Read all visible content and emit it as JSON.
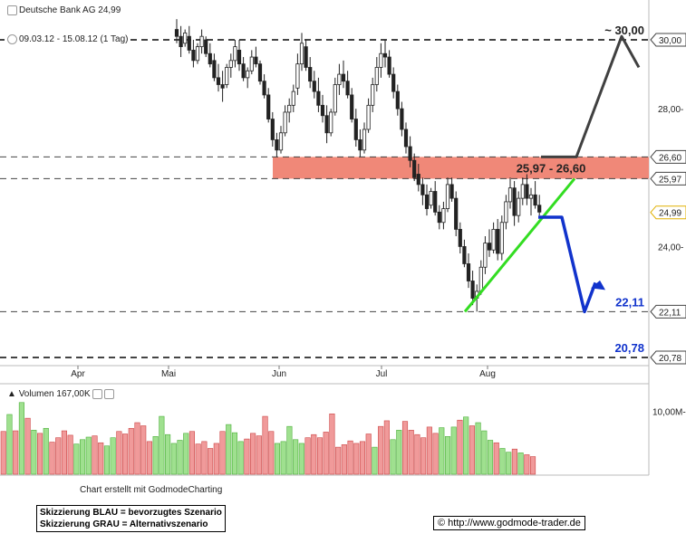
{
  "header": {
    "instrument_label": "Deutsche Bank AG 24,99",
    "period_label": "09.03.12 - 15.08.12 (1 Tag)",
    "volume_label": "Volumen 167,00K"
  },
  "footer": {
    "credit": "Chart erstellt mit GodmodeCharting",
    "legend_blue": "Skizzierung BLAU = bevorzugtes Szenario",
    "legend_grey": "Skizzierung GRAU = Alternativszenario",
    "url": "http://www.godmode-trader.de",
    "copyright_symbol": "©"
  },
  "colors": {
    "up_candle": "#5cbf4a",
    "down_candle": "#d94444",
    "resistance_zone": "#f08878",
    "blue_scenario": "#1133cc",
    "grey_scenario": "#404040",
    "trendline": "#33dd22",
    "volume_up": "#9fe08f",
    "volume_down": "#f09a9a"
  },
  "chart_data": {
    "type": "candlestick",
    "title": "Deutsche Bank AG 24,99",
    "period": "09.03.12 - 15.08.12 (1 Tag)",
    "y_range": [
      20.5,
      30.5
    ],
    "y_ticks": [
      "30,00",
      "28,00",
      "24,00"
    ],
    "x_ticks": [
      "Apr",
      "Mai",
      "Jun",
      "Jul",
      "Aug"
    ],
    "last_price": 24.99,
    "last_price_label": "24,99",
    "levels": [
      {
        "value": 30.0,
        "label": "30,00",
        "annotation": "~ 30,00",
        "style": "dashed"
      },
      {
        "value": 26.6,
        "label": "26,60",
        "style": "dashed"
      },
      {
        "value": 25.97,
        "label": "25,97",
        "style": "dashed"
      },
      {
        "value": 22.11,
        "label": "22,11",
        "annotation": "22,11",
        "style": "dashed"
      },
      {
        "value": 20.78,
        "label": "20,78",
        "annotation": "20,78",
        "style": "dashed"
      }
    ],
    "zone": {
      "from": 25.97,
      "to": 26.6,
      "label": "25,97 - 26,60"
    },
    "trendline": {
      "from_price": 22.11,
      "to_price": 25.97
    },
    "scenario_blue": [
      24.85,
      24.85,
      22.11,
      22.95
    ],
    "scenario_grey": [
      26.6,
      26.6,
      30.1,
      29.2
    ],
    "candles": [
      [
        30.3,
        30.6,
        29.9,
        30.1
      ],
      [
        30.1,
        30.4,
        29.5,
        29.8
      ],
      [
        29.9,
        30.3,
        29.8,
        30.2
      ],
      [
        30.1,
        30.4,
        29.6,
        29.7
      ],
      [
        29.7,
        30.0,
        29.2,
        29.4
      ],
      [
        29.4,
        29.9,
        29.3,
        29.8
      ],
      [
        29.8,
        30.3,
        29.6,
        30.1
      ],
      [
        30.0,
        30.1,
        29.5,
        29.6
      ],
      [
        29.6,
        29.9,
        29.2,
        29.3
      ],
      [
        29.4,
        29.6,
        28.8,
        28.9
      ],
      [
        28.9,
        29.3,
        28.5,
        28.7
      ],
      [
        28.7,
        29.1,
        28.2,
        28.6
      ],
      [
        28.7,
        29.3,
        28.6,
        29.2
      ],
      [
        29.2,
        29.6,
        28.9,
        29.4
      ],
      [
        29.4,
        30.0,
        29.2,
        29.8
      ],
      [
        29.7,
        30.0,
        29.1,
        29.3
      ],
      [
        29.3,
        29.5,
        28.8,
        28.9
      ],
      [
        28.9,
        29.2,
        28.6,
        29.1
      ],
      [
        29.1,
        29.7,
        29.0,
        29.5
      ],
      [
        29.5,
        29.8,
        29.2,
        29.3
      ],
      [
        29.3,
        29.4,
        28.7,
        28.8
      ],
      [
        28.8,
        29.0,
        28.3,
        28.4
      ],
      [
        28.4,
        28.6,
        27.6,
        27.7
      ],
      [
        27.7,
        27.9,
        26.9,
        27.1
      ],
      [
        27.1,
        27.3,
        26.6,
        26.8
      ],
      [
        26.8,
        27.5,
        26.7,
        27.3
      ],
      [
        27.3,
        28.1,
        27.2,
        27.9
      ],
      [
        27.9,
        28.3,
        27.6,
        28.1
      ],
      [
        28.1,
        28.7,
        27.9,
        28.5
      ],
      [
        28.6,
        29.6,
        28.4,
        29.3
      ],
      [
        29.3,
        30.2,
        29.1,
        29.9
      ],
      [
        29.8,
        30.0,
        29.1,
        29.2
      ],
      [
        29.2,
        29.5,
        28.6,
        28.8
      ],
      [
        28.8,
        29.1,
        28.3,
        28.5
      ],
      [
        28.5,
        28.9,
        27.9,
        28.1
      ],
      [
        28.1,
        28.4,
        27.6,
        27.8
      ],
      [
        27.8,
        28.1,
        27.0,
        27.3
      ],
      [
        27.3,
        28.0,
        27.2,
        27.9
      ],
      [
        27.9,
        28.9,
        27.8,
        28.7
      ],
      [
        28.7,
        29.3,
        28.4,
        29.0
      ],
      [
        29.0,
        29.4,
        28.6,
        28.8
      ],
      [
        28.8,
        29.1,
        28.3,
        28.4
      ],
      [
        28.4,
        28.6,
        27.6,
        27.7
      ],
      [
        27.7,
        28.0,
        26.9,
        27.1
      ],
      [
        27.1,
        27.4,
        26.6,
        26.8
      ],
      [
        26.8,
        27.6,
        26.7,
        27.4
      ],
      [
        27.4,
        28.3,
        27.3,
        28.1
      ],
      [
        28.1,
        28.9,
        27.9,
        28.7
      ],
      [
        28.7,
        29.5,
        28.5,
        29.2
      ],
      [
        29.2,
        29.9,
        28.9,
        29.6
      ],
      [
        29.6,
        30.0,
        29.2,
        29.5
      ],
      [
        29.5,
        29.7,
        28.9,
        29.0
      ],
      [
        29.0,
        29.2,
        28.3,
        28.5
      ],
      [
        28.5,
        28.7,
        27.8,
        28.0
      ],
      [
        28.0,
        28.2,
        27.2,
        27.4
      ],
      [
        27.4,
        27.6,
        26.7,
        26.9
      ],
      [
        26.9,
        27.2,
        26.3,
        26.5
      ],
      [
        26.5,
        26.7,
        25.9,
        26.0
      ],
      [
        26.1,
        26.4,
        25.6,
        25.8
      ],
      [
        25.8,
        26.0,
        25.2,
        25.5
      ],
      [
        25.5,
        25.8,
        24.9,
        25.1
      ],
      [
        25.2,
        25.7,
        25.1,
        25.6
      ],
      [
        25.6,
        25.9,
        24.9,
        25.0
      ],
      [
        25.0,
        25.2,
        24.5,
        24.7
      ],
      [
        24.7,
        25.3,
        24.5,
        25.1
      ],
      [
        25.1,
        26.0,
        25.0,
        25.8
      ],
      [
        25.8,
        26.0,
        25.3,
        25.4
      ],
      [
        25.4,
        25.6,
        24.3,
        24.5
      ],
      [
        24.5,
        24.7,
        23.8,
        24.0
      ],
      [
        24.0,
        24.2,
        23.4,
        23.5
      ],
      [
        23.5,
        23.8,
        22.8,
        23.0
      ],
      [
        23.0,
        23.3,
        22.3,
        22.5
      ],
      [
        22.5,
        22.9,
        22.11,
        22.7
      ],
      [
        22.7,
        23.6,
        22.6,
        23.4
      ],
      [
        23.4,
        24.3,
        23.2,
        24.1
      ],
      [
        24.1,
        24.5,
        23.7,
        23.9
      ],
      [
        23.9,
        24.7,
        23.8,
        24.5
      ],
      [
        24.5,
        24.8,
        23.6,
        23.8
      ],
      [
        23.8,
        24.9,
        23.6,
        24.7
      ],
      [
        24.7,
        25.5,
        24.5,
        25.3
      ],
      [
        25.3,
        26.0,
        25.1,
        25.7
      ],
      [
        25.7,
        25.9,
        24.6,
        24.9
      ],
      [
        24.9,
        25.6,
        24.7,
        25.4
      ],
      [
        25.4,
        26.0,
        25.2,
        25.8
      ],
      [
        25.8,
        26.1,
        25.2,
        25.4
      ],
      [
        25.4,
        25.7,
        24.9,
        25.5
      ],
      [
        25.5,
        25.9,
        25.1,
        25.2
      ],
      [
        25.2,
        25.5,
        24.9,
        25.0
      ]
    ],
    "volume": {
      "label": "Volumen 167,00K",
      "tick": "10,00M",
      "values": [
        6.8,
        9.5,
        6.9,
        11.4,
        8.9,
        7.0,
        6.5,
        7.3,
        5.1,
        5.8,
        6.9,
        6.2,
        4.8,
        5.5,
        5.9,
        6.1,
        5.0,
        4.5,
        5.8,
        6.8,
        6.4,
        7.3,
        8.2,
        7.7,
        5.2,
        6.0,
        9.2,
        6.3,
        4.9,
        5.4,
        6.5,
        6.8,
        4.8,
        5.2,
        4.1,
        4.9,
        6.8,
        7.9,
        6.6,
        5.2,
        5.6,
        6.5,
        6.1,
        9.2,
        6.8,
        4.9,
        5.2,
        7.6,
        5.5,
        4.9,
        5.8,
        6.3,
        5.8,
        6.7,
        9.6,
        4.3,
        4.7,
        5.3,
        4.9,
        5.2,
        6.4,
        4.3,
        7.6,
        8.5,
        5.5,
        7.0,
        8.4,
        7.0,
        6.3,
        5.8,
        7.5,
        6.5,
        7.4,
        6.0,
        7.5,
        8.6,
        9.1,
        7.7,
        8.2,
        6.9,
        5.4,
        5.0,
        4.1,
        3.5,
        4.0,
        3.4,
        3.1,
        2.8
      ],
      "dirs": [
        0,
        1,
        0,
        1,
        0,
        1,
        0,
        1,
        0,
        0,
        0,
        0,
        1,
        1,
        1,
        0,
        0,
        1,
        1,
        0,
        0,
        0,
        0,
        0,
        0,
        1,
        1,
        1,
        1,
        1,
        1,
        0,
        0,
        0,
        0,
        0,
        0,
        1,
        1,
        1,
        0,
        0,
        0,
        0,
        0,
        1,
        1,
        1,
        1,
        1,
        0,
        0,
        0,
        0,
        0,
        0,
        0,
        0,
        0,
        0,
        0,
        1,
        0,
        0,
        1,
        1,
        0,
        0,
        0,
        0,
        0,
        0,
        1,
        1,
        1,
        0,
        1,
        0,
        1,
        1,
        1,
        0,
        1,
        1,
        0,
        1,
        0,
        0
      ]
    }
  }
}
